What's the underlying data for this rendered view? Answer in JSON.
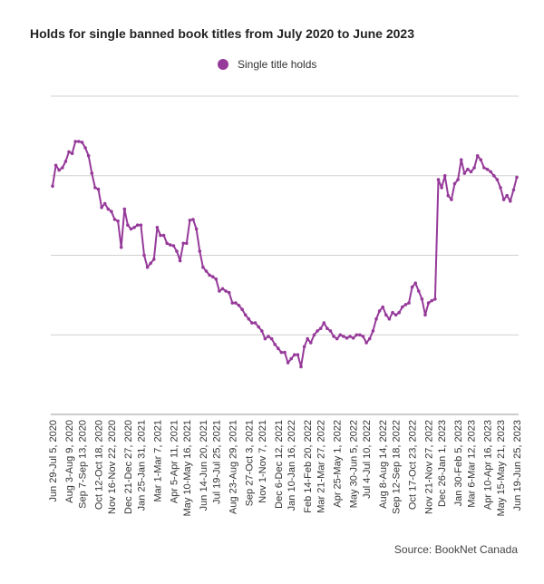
{
  "chart_data": {
    "type": "line",
    "title": "Holds for single banned book titles from July 2020 to June 2023",
    "legend": "Single title holds",
    "legend_position": "top-center",
    "source": "Source: BookNet Canada",
    "color": "#963a9a",
    "y_tick_labels_visible": false,
    "grid": true,
    "x_labels": [
      "Jun 29-Jul 5, 2020",
      "Aug 3-Aug 9, 2020",
      "Sep 7-Sep 13, 2020",
      "Oct 12-Oct 18, 2020",
      "Nov 16-Nov 22, 2020",
      "Dec 21-Dec 27, 2020",
      "Jan 25-Jan 31, 2021",
      "Mar 1-Mar 7, 2021",
      "Apr 5-Apr 11, 2021",
      "May 10-May 16, 2021",
      "Jun 14-Jun 20, 2021",
      "Jul 19-Jul 25, 2021",
      "Aug 23-Aug 29, 2021",
      "Sep 27-Oct 3, 2021",
      "Nov 1-Nov 7, 2021",
      "Dec 6-Dec 12, 2021",
      "Jan 10-Jan 16, 2022",
      "Feb 14-Feb 20, 2022",
      "Mar 21-Mar 27, 2022",
      "Apr 25-May 1, 2022",
      "May 30-Jun 5, 2022",
      "Jul 4-Jul 10, 2022",
      "Aug 8-Aug 14, 2022",
      "Sep 12-Sep 18, 2022",
      "Oct 17-Oct 23, 2022",
      "Nov 21-Nov 27, 2022",
      "Dec 26-Jan 1, 2023",
      "Jan 30-Feb 5, 2023",
      "Mar 6-Mar 12, 2023",
      "Apr 10-Apr 16, 2023",
      "May 15-May 21, 2023",
      "Jun 19-Jun 25, 2023"
    ],
    "ylim": [
      0,
      4
    ],
    "values": [
      2.87,
      3.13,
      3.07,
      3.1,
      3.18,
      3.3,
      3.28,
      3.43,
      3.43,
      3.42,
      3.35,
      3.25,
      3.03,
      2.85,
      2.83,
      2.6,
      2.65,
      2.58,
      2.55,
      2.45,
      2.43,
      2.1,
      2.58,
      2.38,
      2.33,
      2.35,
      2.38,
      2.38,
      2.0,
      1.85,
      1.9,
      1.95,
      2.35,
      2.25,
      2.25,
      2.15,
      2.13,
      2.12,
      2.05,
      1.93,
      2.15,
      2.15,
      2.44,
      2.45,
      2.33,
      2.05,
      1.85,
      1.8,
      1.75,
      1.73,
      1.7,
      1.55,
      1.58,
      1.55,
      1.53,
      1.4,
      1.4,
      1.37,
      1.32,
      1.25,
      1.2,
      1.15,
      1.15,
      1.1,
      1.05,
      0.95,
      0.98,
      0.95,
      0.88,
      0.83,
      0.78,
      0.78,
      0.65,
      0.7,
      0.75,
      0.75,
      0.6,
      0.85,
      0.95,
      0.9,
      1.0,
      1.05,
      1.08,
      1.15,
      1.08,
      1.05,
      0.98,
      0.95,
      1.0,
      0.98,
      0.96,
      0.98,
      0.96,
      1.0,
      1.0,
      0.98,
      0.9,
      0.95,
      1.05,
      1.2,
      1.3,
      1.35,
      1.25,
      1.2,
      1.28,
      1.25,
      1.28,
      1.35,
      1.38,
      1.4,
      1.6,
      1.65,
      1.55,
      1.45,
      1.25,
      1.4,
      1.43,
      1.45,
      2.95,
      2.85,
      3.0,
      2.75,
      2.7,
      2.9,
      2.95,
      3.2,
      3.03,
      3.08,
      3.05,
      3.1,
      3.25,
      3.2,
      3.1,
      3.08,
      3.05,
      3.0,
      2.95,
      2.85,
      2.7,
      2.75,
      2.68,
      2.82,
      2.98
    ]
  }
}
